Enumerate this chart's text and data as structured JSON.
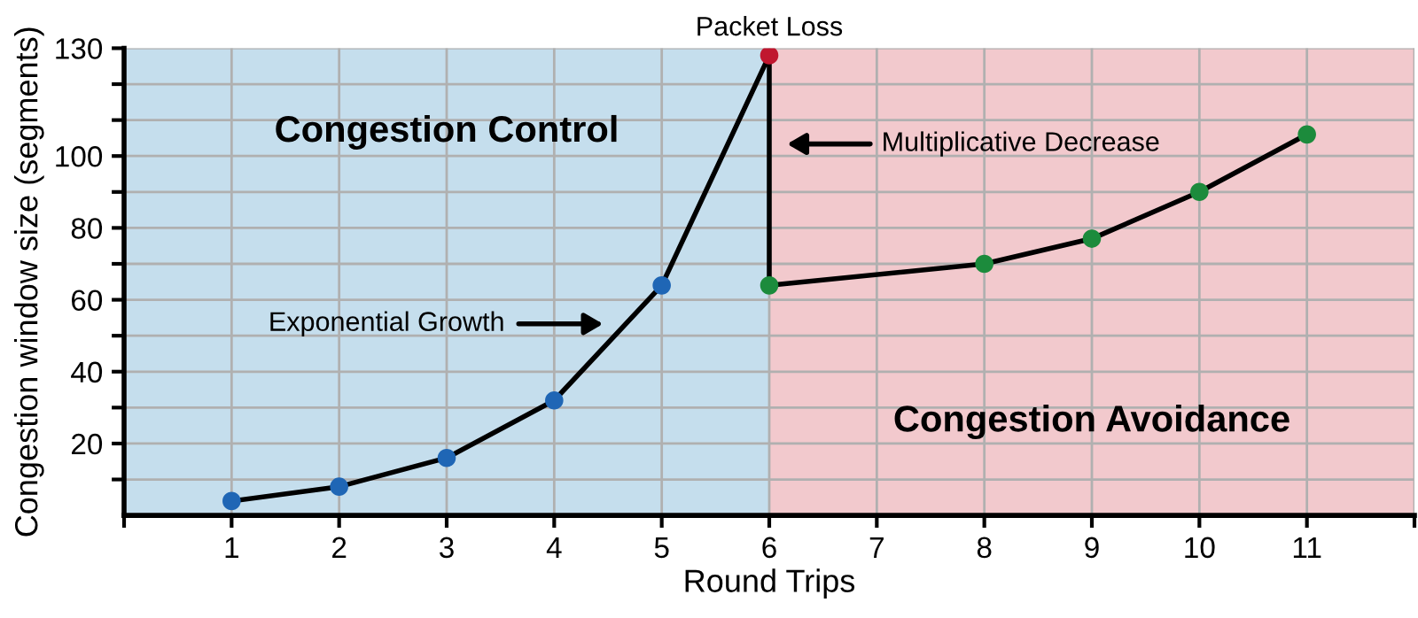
{
  "chart_data": {
    "type": "line",
    "xlabel": "Round Trips",
    "ylabel": "Congestion window size (segments)",
    "series": [
      {
        "x": [
          1,
          2,
          3,
          4,
          5,
          6,
          6,
          8,
          9,
          10,
          11
        ],
        "values": [
          4,
          8,
          16,
          32,
          64,
          128,
          64,
          70,
          77,
          90,
          106
        ],
        "color": "#000000",
        "colors": [
          "#1f66b5",
          "#1f66b5",
          "#1f66b5",
          "#1f66b5",
          "#1f66b5",
          "#c0172f",
          "#1c8b3c",
          "#1c8b3c",
          "#1c8b3c",
          "#1c8b3c",
          "#1c8b3c"
        ]
      }
    ],
    "marker": "circle",
    "line_style": "solid",
    "xlim": [
      0,
      12
    ],
    "ylim": [
      0,
      130
    ],
    "xticks": [
      {
        "value": 0,
        "label": null
      },
      1,
      2,
      3,
      4,
      5,
      6,
      7,
      8,
      9,
      10,
      11,
      {
        "value": 12,
        "label": null
      }
    ],
    "yticks": [
      {
        "value": 10,
        "label": null
      },
      20,
      {
        "value": 30,
        "label": null
      },
      40,
      {
        "value": 50,
        "label": null
      },
      60,
      {
        "value": 70,
        "label": null
      },
      80,
      {
        "value": 90,
        "label": null
      },
      100,
      {
        "value": 110,
        "label": null
      },
      {
        "value": 120,
        "label": null
      },
      130
    ],
    "grid": true,
    "bands": [
      {
        "axis": "x",
        "from": 0,
        "to": 6,
        "label": "Congestion Control",
        "color": "#c5deed"
      },
      {
        "axis": "x",
        "from": 6,
        "to": 12,
        "label": "Congestion Avoidance",
        "color": "#f2c9cd"
      }
    ],
    "annotations": [
      "Packet Loss",
      "Multiplicative Decrease",
      "Exponential Growth"
    ]
  }
}
